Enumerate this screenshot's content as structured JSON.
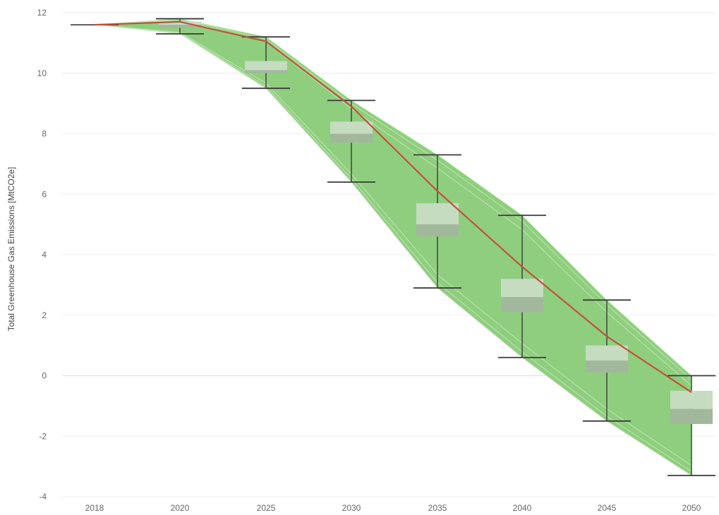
{
  "chart_data": {
    "type": "box",
    "title": "",
    "xlabel": "",
    "ylabel": "Total Greenhouse Gas Emissions [MtCO2e]",
    "ylim": [
      -4.4,
      12.3
    ],
    "yticks": [
      -4,
      -2,
      0,
      2,
      4,
      6,
      8,
      10,
      12
    ],
    "grid": true,
    "categories": [
      "2018",
      "2020",
      "2025",
      "2030",
      "2035",
      "2040",
      "2045",
      "2050"
    ],
    "boxes": [
      {
        "year": "2018",
        "min": 11.6,
        "q1": 11.6,
        "median": 11.6,
        "q3": 11.6,
        "max": 11.6
      },
      {
        "year": "2020",
        "min": 11.3,
        "q1": 11.5,
        "median": 11.6,
        "q3": 11.7,
        "max": 11.8
      },
      {
        "year": "2025",
        "min": 9.5,
        "q1": 10.0,
        "median": 10.1,
        "q3": 10.4,
        "max": 11.2
      },
      {
        "year": "2030",
        "min": 6.4,
        "q1": 7.7,
        "median": 8.0,
        "q3": 8.4,
        "max": 9.1
      },
      {
        "year": "2035",
        "min": 2.9,
        "q1": 4.6,
        "median": 5.0,
        "q3": 5.7,
        "max": 7.3
      },
      {
        "year": "2040",
        "min": 0.6,
        "q1": 2.1,
        "median": 2.6,
        "q3": 3.2,
        "max": 5.3
      },
      {
        "year": "2045",
        "min": -1.5,
        "q1": 0.1,
        "median": 0.5,
        "q3": 1.0,
        "max": 2.5
      },
      {
        "year": "2050",
        "min": -3.3,
        "q1": -1.6,
        "median": -1.1,
        "q3": -0.5,
        "max": 0.0
      }
    ],
    "envelope": {
      "upper": [
        11.6,
        11.8,
        11.2,
        9.1,
        7.3,
        5.3,
        2.5,
        0.0
      ],
      "lower": [
        11.6,
        11.3,
        9.5,
        6.4,
        2.9,
        0.6,
        -1.5,
        -3.3
      ]
    },
    "reference_line": {
      "values": [
        11.6,
        11.7,
        11.05,
        8.9,
        6.1,
        3.6,
        1.3,
        -0.55
      ],
      "color": "#c0533a"
    },
    "colors": {
      "envelope_fill": "#8fce7e",
      "envelope_lines": "#c9ebc0",
      "box_upper": "#c6dcc1",
      "box_lower": "#a2b89d",
      "whisker": "#3a3a3a",
      "grid": "#eeeeee"
    }
  }
}
